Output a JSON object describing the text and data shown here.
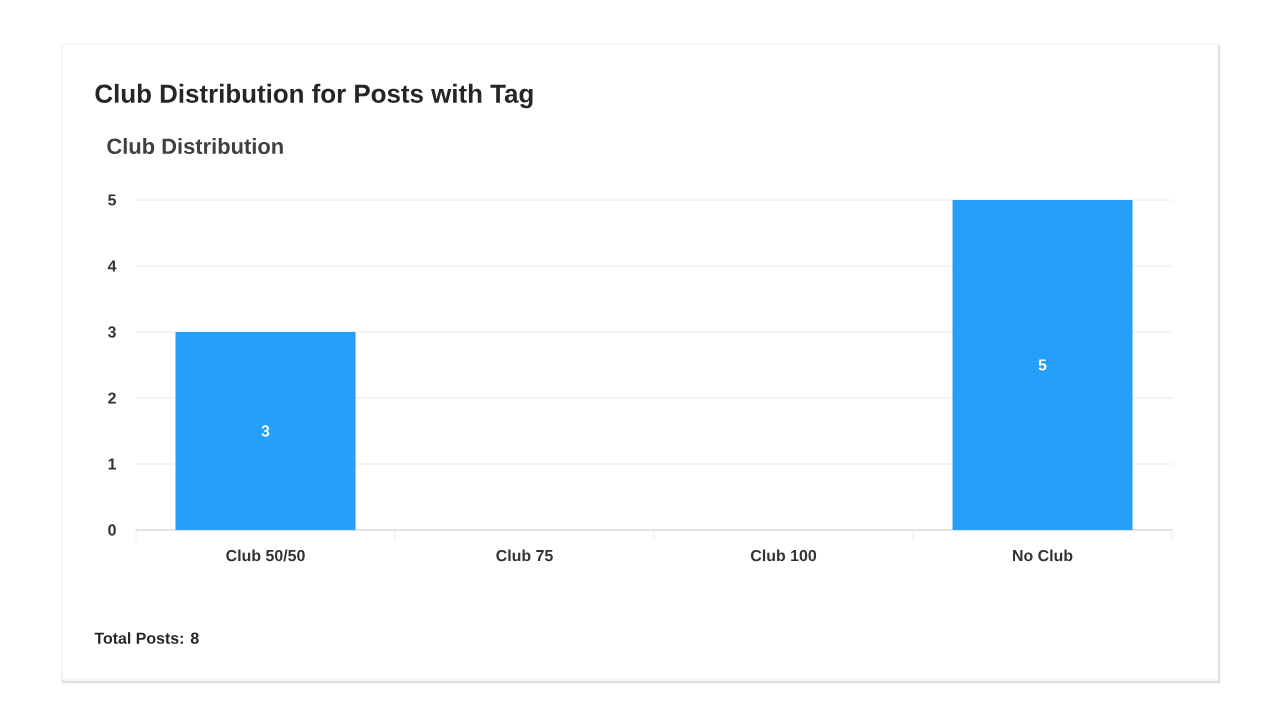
{
  "chart_data": {
    "type": "bar",
    "title": "Club Distribution for Posts with Tag",
    "subtitle": "Club Distribution",
    "categories": [
      "Club 50/50",
      "Club 75",
      "Club 100",
      "No Club"
    ],
    "values": [
      3,
      0,
      0,
      5
    ],
    "color": "#269ffb",
    "value_labels": [
      "3",
      null,
      null,
      "5"
    ],
    "ylim": [
      0,
      5
    ],
    "yticks": [
      0,
      1,
      2,
      3,
      4,
      5
    ],
    "grid": "y",
    "annotations": [
      "Total Posts: 8"
    ]
  }
}
